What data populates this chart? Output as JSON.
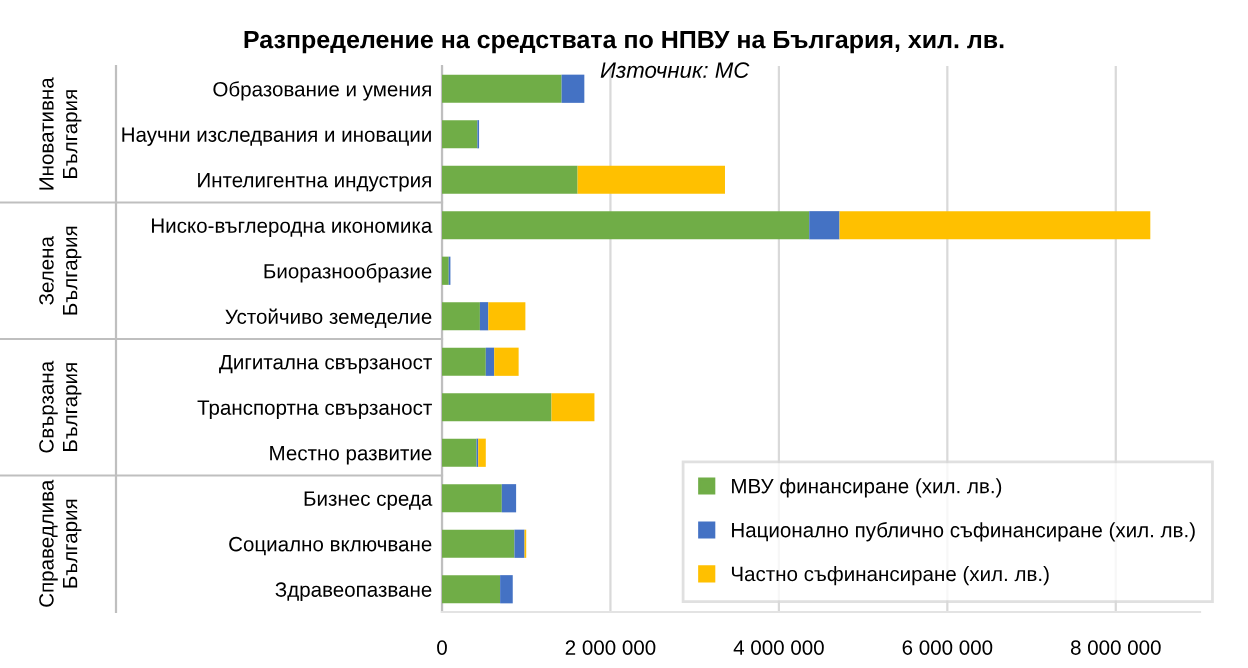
{
  "chart_data": {
    "type": "bar",
    "orientation": "horizontal",
    "stacked": true,
    "title": "Разпределение на средствата по НПВУ на България, хил. лв.",
    "annotations": [
      "Източник: МС",
      "Иновативна\nБългария",
      "Зелена\nБългария",
      "Свързана\nБългария",
      "Справедлива\nБългария"
    ],
    "categories": [
      "Образование и умения",
      "Научни изследвания и иновации",
      "Интелигентна индустрия",
      "Ниско-въглеродна икономика",
      "Биоразнообразие",
      "Устойчиво земеделие",
      "Дигитална свързаност",
      "Транспортна свързаност",
      "Местно развитие",
      "Бизнес среда",
      "Социално включване",
      "Здравеопазване"
    ],
    "series": [
      {
        "name": "МВУ финансиране (хил. лв.)",
        "color": "#70ad47",
        "values": [
          1420000,
          420000,
          1610000,
          4360000,
          80000,
          450000,
          520000,
          1300000,
          410000,
          710000,
          860000,
          690000
        ]
      },
      {
        "name": "Национално публично съфинансиране (хил. лв.)",
        "color": "#4472c4",
        "values": [
          270000,
          20000,
          0,
          360000,
          20000,
          100000,
          100000,
          0,
          20000,
          170000,
          120000,
          150000
        ]
      },
      {
        "name": "Частно съфинансиране (хил. лв.)",
        "color": "#ffc000",
        "values": [
          0,
          0,
          1750000,
          3690000,
          0,
          440000,
          290000,
          510000,
          90000,
          0,
          20000,
          0
        ]
      }
    ],
    "xlim": [
      0,
      9000000
    ],
    "xticks": [
      {
        "value": 0,
        "label": "0"
      },
      {
        "value": 2000000,
        "label": "2 000 000"
      },
      {
        "value": 4000000,
        "label": "4 000 000"
      },
      {
        "value": 6000000,
        "label": "6 000 000"
      },
      {
        "value": 8000000,
        "label": "8 000 000"
      }
    ],
    "grid": "x",
    "legend": "bottom right"
  }
}
